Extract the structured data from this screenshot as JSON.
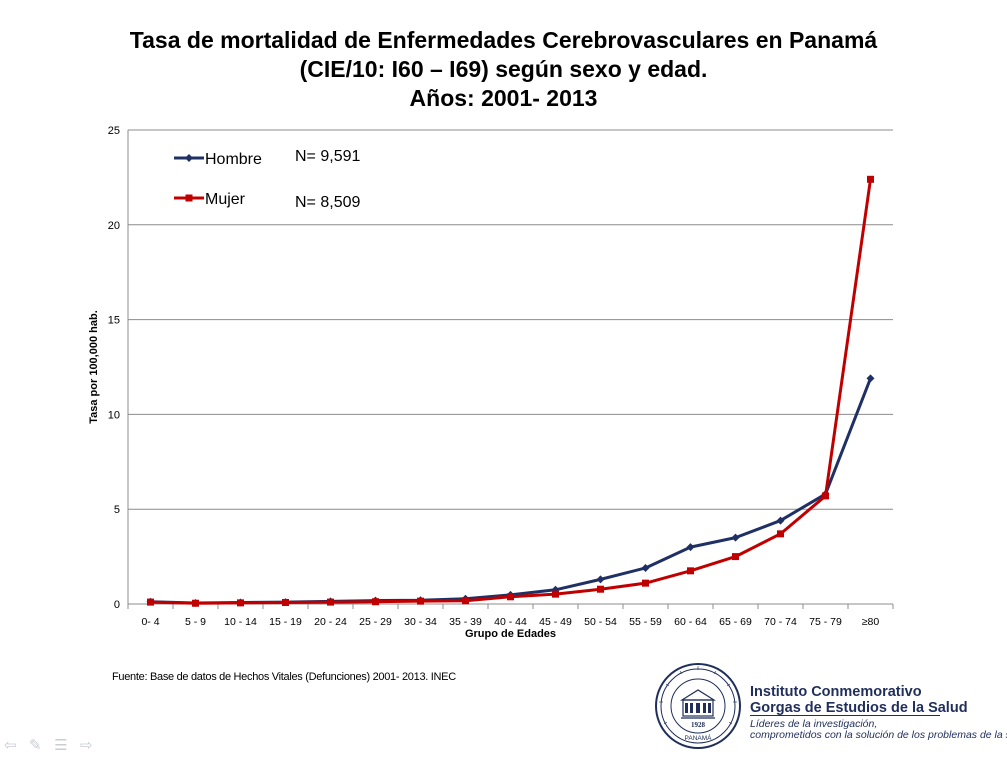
{
  "header": {
    "title_line1": "Tasa de mortalidad de Enfermedades Cerebrovasculares en Panamá",
    "title_line2": "(CIE/10: I60 – I69) según sexo y edad.",
    "title_line3": "Años: 2001- 2013"
  },
  "chart_data": {
    "type": "line",
    "title": "Tasa de mortalidad de Enfermedades Cerebrovasculares en Panamá (CIE/10: I60 – I69) según sexo y edad. Años: 2001- 2013",
    "xlabel": "Grupo de Edades",
    "ylabel": "Tasa por 100,000 hab.",
    "ylim": [
      0,
      25
    ],
    "yticks": [
      0,
      5,
      10,
      15,
      20,
      25
    ],
    "grid": true,
    "legend_position": "top-left",
    "categories": [
      "0- 4",
      "5 - 9",
      "10 - 14",
      "15 - 19",
      "20 - 24",
      "25 - 29",
      "30 - 34",
      "35 - 39",
      "40 - 44",
      "45 - 49",
      "50 - 54",
      "55 - 59",
      "60 - 64",
      "65 - 69",
      "70 - 74",
      "75 - 79",
      "≥80"
    ],
    "series": [
      {
        "name": "Hombre",
        "color": "#1f3064",
        "marker": "diamond",
        "annotation": "N= 9,591",
        "values": [
          0.12,
          0.05,
          0.08,
          0.1,
          0.14,
          0.18,
          0.2,
          0.28,
          0.48,
          0.75,
          1.3,
          1.9,
          3.0,
          3.5,
          4.4,
          5.8,
          11.9
        ]
      },
      {
        "name": "Mujer",
        "color": "#c00000",
        "marker": "square",
        "annotation": "N= 8,509",
        "values": [
          0.1,
          0.04,
          0.06,
          0.08,
          0.1,
          0.12,
          0.15,
          0.17,
          0.38,
          0.52,
          0.78,
          1.1,
          1.75,
          2.5,
          3.7,
          5.7,
          22.4
        ]
      }
    ]
  },
  "footer": {
    "source": "Fuente: Base de datos de Hechos Vitales (Defunciones) 2001- 2013. INEC",
    "institute_line1": "Instituto Conmemorativo",
    "institute_line2": "Gorgas de Estudios de la Salud",
    "motto_line1": "Líderes de la investigación,",
    "motto_line2": "comprometidos con la solución de los problemas de la salud",
    "seal_year": "1928",
    "seal_city": "PANAMÁ"
  },
  "nav": {
    "back_icon": "arrow-left-icon",
    "pen_icon": "pen-icon",
    "menu_icon": "menu-icon",
    "forward_icon": "arrow-right-icon"
  }
}
